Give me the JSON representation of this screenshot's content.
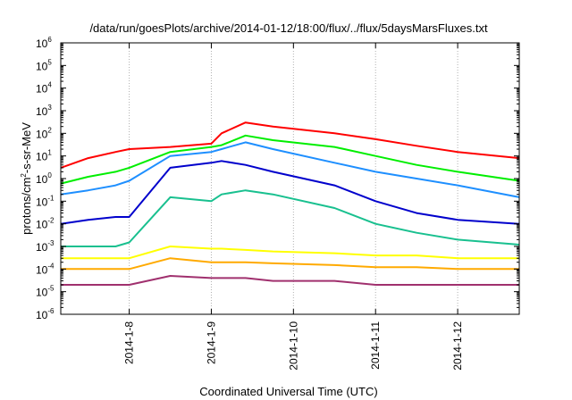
{
  "chart_data": {
    "type": "line",
    "title": "/data/run/goesPlots/archive/2014-01-12/18:00/flux/../flux/5daysMarsFluxes.txt",
    "xlabel": "Coordinated Universal Time (UTC)",
    "ylabel": {
      "base": "protons/cm",
      "sup": "2",
      "rest": "-s-sr-MeV"
    },
    "scale_y": "log",
    "ylim": [
      1e-06,
      1000000.0
    ],
    "xlim": [
      "2014-01-07T04:00",
      "2014-01-12T18:00"
    ],
    "grid": "vertical",
    "legend": "none",
    "x_ticks": [
      "2014-1-8",
      "2014-1-9",
      "2014-1-10",
      "2014-1-11",
      "2014-1-12"
    ],
    "y_ticks": [
      {
        "base": "10",
        "exp": "6"
      },
      {
        "base": "10",
        "exp": "5"
      },
      {
        "base": "10",
        "exp": "4"
      },
      {
        "base": "10",
        "exp": "3"
      },
      {
        "base": "10",
        "exp": "2"
      },
      {
        "base": "10",
        "exp": "1"
      },
      {
        "base": "10",
        "exp": "0"
      },
      {
        "base": "10",
        "exp": "-1"
      },
      {
        "base": "10",
        "exp": "-2"
      },
      {
        "base": "10",
        "exp": "-3"
      },
      {
        "base": "10",
        "exp": "-4"
      },
      {
        "base": "10",
        "exp": "-5"
      },
      {
        "base": "10",
        "exp": "-6"
      }
    ],
    "x": [
      "2014-01-07T04:00",
      "2014-01-07T12:00",
      "2014-01-07T20:00",
      "2014-01-08T00:00",
      "2014-01-08T12:00",
      "2014-01-09T00:00",
      "2014-01-09T03:00",
      "2014-01-09T10:00",
      "2014-01-09T18:00",
      "2014-01-10T12:00",
      "2014-01-11T00:00",
      "2014-01-11T12:00",
      "2014-01-12T00:00",
      "2014-01-12T18:00"
    ],
    "series": [
      {
        "color": "#ff0000",
        "values": [
          3,
          8,
          15,
          20,
          25,
          35,
          100,
          300,
          200,
          100,
          55,
          28,
          15,
          8
        ]
      },
      {
        "color": "#00ee00",
        "values": [
          0.6,
          1.2,
          2,
          3,
          15,
          25,
          30,
          80,
          50,
          25,
          10,
          4,
          2,
          0.8
        ]
      },
      {
        "color": "#1e8fff",
        "values": [
          0.2,
          0.3,
          0.5,
          0.8,
          10,
          15,
          20,
          40,
          20,
          5,
          2,
          1,
          0.5,
          0.15
        ]
      },
      {
        "color": "#0000cc",
        "values": [
          0.01,
          0.015,
          0.02,
          0.02,
          3,
          5,
          6,
          4,
          2,
          0.5,
          0.1,
          0.03,
          0.015,
          0.01
        ]
      },
      {
        "color": "#19c08f",
        "values": [
          0.001,
          0.001,
          0.001,
          0.0015,
          0.15,
          0.1,
          0.2,
          0.3,
          0.2,
          0.05,
          0.01,
          0.004,
          0.002,
          0.0012
        ]
      },
      {
        "color": "#ffff00",
        "values": [
          0.0003,
          0.0003,
          0.0003,
          0.0003,
          0.001,
          0.0008,
          0.0008,
          0.0007,
          0.0006,
          0.0005,
          0.0004,
          0.0004,
          0.0003,
          0.0003
        ]
      },
      {
        "color": "#ffaa00",
        "values": [
          0.0001,
          0.0001,
          0.0001,
          0.0001,
          0.0003,
          0.0002,
          0.0002,
          0.0002,
          0.00018,
          0.00015,
          0.00012,
          0.00012,
          0.0001,
          0.0001
        ]
      },
      {
        "color": "#a0306e",
        "values": [
          2e-05,
          2e-05,
          2e-05,
          2e-05,
          5e-05,
          4e-05,
          4e-05,
          4e-05,
          3e-05,
          3e-05,
          2e-05,
          2e-05,
          2e-05,
          2e-05
        ]
      }
    ]
  }
}
